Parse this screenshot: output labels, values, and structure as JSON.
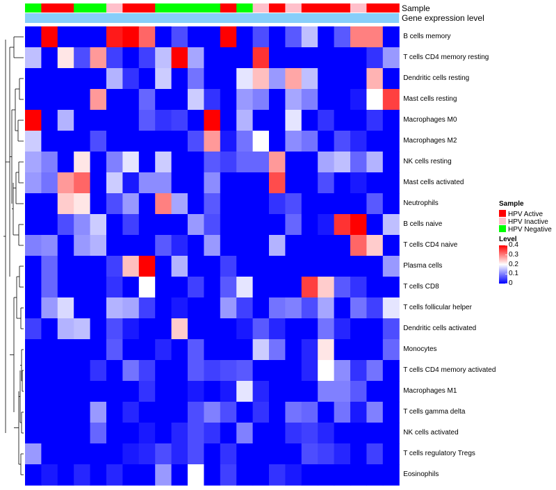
{
  "chart_data": {
    "type": "heatmap",
    "title": "",
    "annotation_tracks": [
      {
        "name": "Sample",
        "label": "Sample"
      },
      {
        "name": "Gene expression level",
        "label": "Gene expression level"
      }
    ],
    "rows": [
      "B cells memory",
      "T cells CD4 memory resting",
      "Dendritic cells resting",
      "Mast cells resting",
      "Macrophages M0",
      "Macrophages M2",
      "NK cells resting",
      "Mast cells activated",
      "Neutrophils",
      "B cells naive",
      "T cells CD4 naive",
      "Plasma cells",
      "T cells CD8",
      "T cells follicular helper",
      "Dendritic cells activated",
      "Monocytes",
      "T cells CD4 memory activated",
      "Macrophages M1",
      "T cells gamma delta",
      "NK cells activated",
      "T cells regulatory  Tregs",
      "Eosinophils"
    ],
    "sample_groups": [
      "Negative",
      "Active",
      "Active",
      "Negative",
      "Negative",
      "Inactive",
      "Active",
      "Active",
      "Negative",
      "Negative",
      "Negative",
      "Negative",
      "Active",
      "Negative",
      "Inactive",
      "Active",
      "Inactive",
      "Active",
      "Active",
      "Active",
      "Inactive",
      "Active",
      "Active"
    ],
    "values": [
      [
        0.0,
        0.4,
        0.0,
        0.0,
        0.0,
        0.38,
        0.4,
        0.32,
        0.0,
        0.06,
        0.0,
        0.0,
        0.4,
        0.0,
        0.06,
        0.0,
        0.07,
        0.15,
        0.0,
        0.07,
        0.3,
        0.3,
        0.0
      ],
      [
        0.15,
        0.0,
        0.22,
        0.06,
        0.28,
        0.05,
        0.0,
        0.05,
        0.15,
        0.4,
        0.13,
        0.0,
        0.0,
        0.0,
        0.36,
        0.0,
        0.0,
        0.0,
        0.0,
        0.0,
        0.0,
        0.04,
        0.12
      ],
      [
        0.0,
        0.0,
        0.0,
        0.0,
        0.0,
        0.14,
        0.04,
        0.0,
        0.16,
        0.0,
        0.09,
        0.0,
        0.0,
        0.18,
        0.25,
        0.12,
        0.27,
        0.15,
        0.0,
        0.0,
        0.0,
        0.26,
        0.0
      ],
      [
        0.0,
        0.0,
        0.0,
        0.0,
        0.28,
        0.0,
        0.0,
        0.08,
        0.0,
        0.0,
        0.16,
        0.04,
        0.0,
        0.12,
        0.1,
        0.0,
        0.13,
        0.1,
        0.0,
        0.0,
        0.02,
        0.2,
        0.35
      ],
      [
        0.4,
        0.0,
        0.14,
        0.0,
        0.0,
        0.0,
        0.0,
        0.07,
        0.04,
        0.05,
        0.0,
        0.4,
        0.0,
        0.14,
        0.0,
        0.0,
        0.18,
        0.0,
        0.04,
        0.0,
        0.0,
        0.04,
        0.0
      ],
      [
        0.16,
        0.0,
        0.0,
        0.0,
        0.06,
        0.0,
        0.0,
        0.0,
        0.0,
        0.0,
        0.06,
        0.28,
        0.02,
        0.09,
        0.2,
        0.0,
        0.11,
        0.09,
        0.0,
        0.06,
        0.03,
        0.0,
        0.0
      ],
      [
        0.13,
        0.1,
        0.0,
        0.22,
        0.0,
        0.1,
        0.18,
        0.0,
        0.16,
        0.0,
        0.0,
        0.07,
        0.05,
        0.08,
        0.08,
        0.28,
        0.0,
        0.0,
        0.13,
        0.15,
        0.08,
        0.14,
        0.0
      ],
      [
        0.12,
        0.09,
        0.28,
        0.32,
        0.0,
        0.16,
        0.02,
        0.11,
        0.11,
        0.0,
        0.0,
        0.11,
        0.0,
        0.0,
        0.0,
        0.34,
        0.0,
        0.0,
        0.06,
        0.0,
        0.02,
        0.0,
        0.0
      ],
      [
        0.0,
        0.0,
        0.24,
        0.22,
        0.0,
        0.06,
        0.12,
        0.0,
        0.3,
        0.13,
        0.0,
        0.07,
        0.0,
        0.0,
        0.0,
        0.04,
        0.06,
        0.0,
        0.0,
        0.0,
        0.0,
        0.07,
        0.0
      ],
      [
        0.0,
        0.0,
        0.06,
        0.11,
        0.16,
        0.0,
        0.05,
        0.0,
        0.0,
        0.0,
        0.12,
        0.06,
        0.0,
        0.0,
        0.0,
        0.0,
        0.08,
        0.0,
        0.02,
        0.36,
        0.4,
        0.0,
        0.15
      ],
      [
        0.1,
        0.11,
        0.0,
        0.12,
        0.14,
        0.0,
        0.0,
        0.0,
        0.07,
        0.03,
        0.0,
        0.12,
        0.0,
        0.0,
        0.0,
        0.14,
        0.0,
        0.0,
        0.0,
        0.0,
        0.32,
        0.24,
        0.0
      ],
      [
        0.0,
        0.08,
        0.0,
        0.0,
        0.0,
        0.05,
        0.25,
        0.4,
        0.0,
        0.14,
        0.0,
        0.0,
        0.05,
        0.0,
        0.0,
        0.0,
        0.0,
        0.0,
        0.0,
        0.0,
        0.0,
        0.0,
        0.12
      ],
      [
        0.0,
        0.08,
        0.0,
        0.0,
        0.0,
        0.04,
        0.0,
        0.2,
        0.0,
        0.0,
        0.05,
        0.0,
        0.07,
        0.18,
        0.0,
        0.0,
        0.0,
        0.35,
        0.24,
        0.07,
        0.04,
        0.0,
        0.0
      ],
      [
        0.0,
        0.12,
        0.17,
        0.0,
        0.0,
        0.14,
        0.13,
        0.05,
        0.0,
        0.02,
        0.0,
        0.0,
        0.12,
        0.05,
        0.0,
        0.09,
        0.1,
        0.06,
        0.13,
        0.0,
        0.09,
        0.05,
        0.18
      ],
      [
        0.05,
        0.0,
        0.14,
        0.15,
        0.0,
        0.06,
        0.02,
        0.0,
        0.0,
        0.24,
        0.0,
        0.0,
        0.0,
        0.02,
        0.07,
        0.03,
        0.0,
        0.0,
        0.09,
        0.03,
        0.0,
        0.0,
        0.06
      ],
      [
        0.0,
        0.0,
        0.0,
        0.0,
        0.0,
        0.07,
        0.0,
        0.0,
        0.03,
        0.0,
        0.07,
        0.0,
        0.0,
        0.0,
        0.16,
        0.09,
        0.0,
        0.03,
        0.22,
        0.0,
        0.0,
        0.0,
        0.08
      ],
      [
        0.0,
        0.0,
        0.0,
        0.0,
        0.04,
        0.0,
        0.09,
        0.05,
        0.0,
        0.0,
        0.07,
        0.05,
        0.06,
        0.07,
        0.0,
        0.0,
        0.0,
        0.03,
        0.2,
        0.11,
        0.04,
        0.09,
        0.0
      ],
      [
        0.0,
        0.0,
        0.0,
        0.0,
        0.0,
        0.0,
        0.0,
        0.04,
        0.0,
        0.0,
        0.02,
        0.0,
        0.02,
        0.18,
        0.03,
        0.0,
        0.0,
        0.0,
        0.1,
        0.1,
        0.07,
        0.0,
        0.0
      ],
      [
        0.0,
        0.0,
        0.0,
        0.0,
        0.12,
        0.0,
        0.03,
        0.0,
        0.0,
        0.0,
        0.06,
        0.1,
        0.06,
        0.0,
        0.04,
        0.0,
        0.09,
        0.08,
        0.0,
        0.09,
        0.02,
        0.1,
        0.0
      ],
      [
        0.0,
        0.0,
        0.0,
        0.0,
        0.08,
        0.0,
        0.0,
        0.02,
        0.0,
        0.03,
        0.06,
        0.04,
        0.0,
        0.1,
        0.0,
        0.0,
        0.04,
        0.05,
        0.03,
        0.0,
        0.0,
        0.0,
        0.0
      ],
      [
        0.12,
        0.0,
        0.0,
        0.0,
        0.0,
        0.0,
        0.02,
        0.03,
        0.06,
        0.03,
        0.06,
        0.0,
        0.04,
        0.0,
        0.0,
        0.0,
        0.0,
        0.06,
        0.05,
        0.03,
        0.0,
        0.05,
        0.0
      ],
      [
        0.0,
        0.02,
        0.0,
        0.03,
        0.0,
        0.03,
        0.0,
        0.0,
        0.12,
        0.0,
        0.2,
        0.0,
        0.05,
        0.0,
        0.0,
        0.04,
        0.02,
        0.0,
        0.0,
        0.0,
        0.0,
        0.0,
        0.0
      ]
    ],
    "color_scale": {
      "min": 0,
      "max": 0.4,
      "low": "#0000ff",
      "mid": "#ffffff",
      "high": "#ff0000"
    },
    "dendrogram": "rows"
  },
  "legend": {
    "sample_title": "Sample",
    "sample_items": [
      {
        "key": "Active",
        "label": "HPV Active",
        "color": "#ff0000"
      },
      {
        "key": "Inactive",
        "label": "HPV Inactive",
        "color": "#ffc0cb"
      },
      {
        "key": "Negative",
        "label": "HPV Negative",
        "color": "#00ff00"
      }
    ],
    "level_title": "Level",
    "level_ticks": [
      "0.4",
      "0.3",
      "0.2",
      "0.1",
      "0"
    ],
    "level_tick_values": [
      0.4,
      0.3,
      0.2,
      0.1,
      0
    ]
  },
  "gene_expression_color": "#87cefa"
}
